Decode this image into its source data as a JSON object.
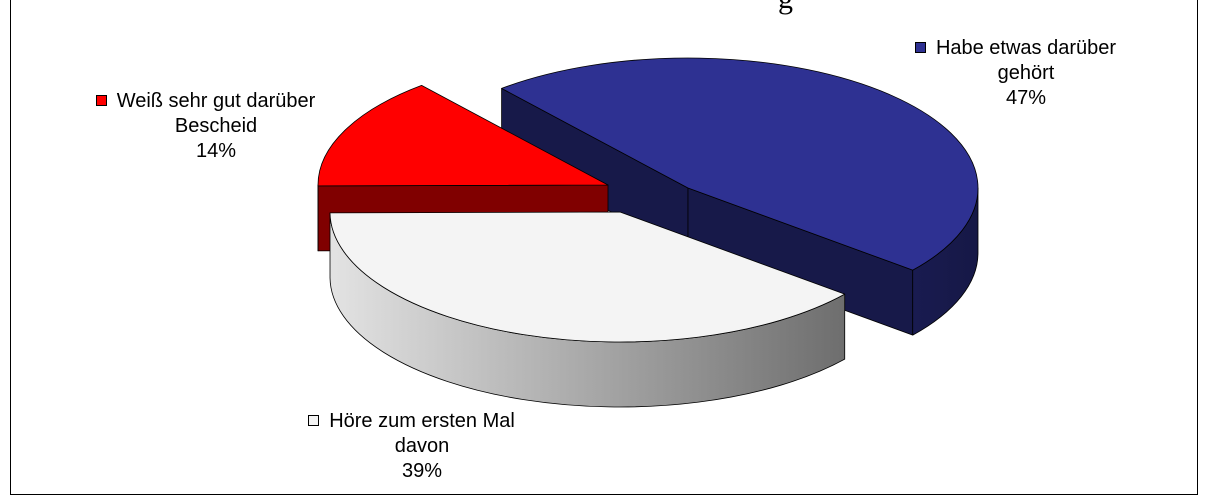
{
  "title_fragment": "g",
  "chart_data": {
    "type": "pie",
    "three_d": true,
    "exploded": true,
    "label_position": "outside",
    "categories": [
      "Habe etwas darüber gehört",
      "Höre zum ersten Mal davon",
      "Weiß sehr gut darüber Bescheid"
    ],
    "values": [
      47,
      39,
      14
    ],
    "unit": "%",
    "colors": [
      "#2E3192",
      "#F4F4F4",
      "#FF0000"
    ]
  }
}
